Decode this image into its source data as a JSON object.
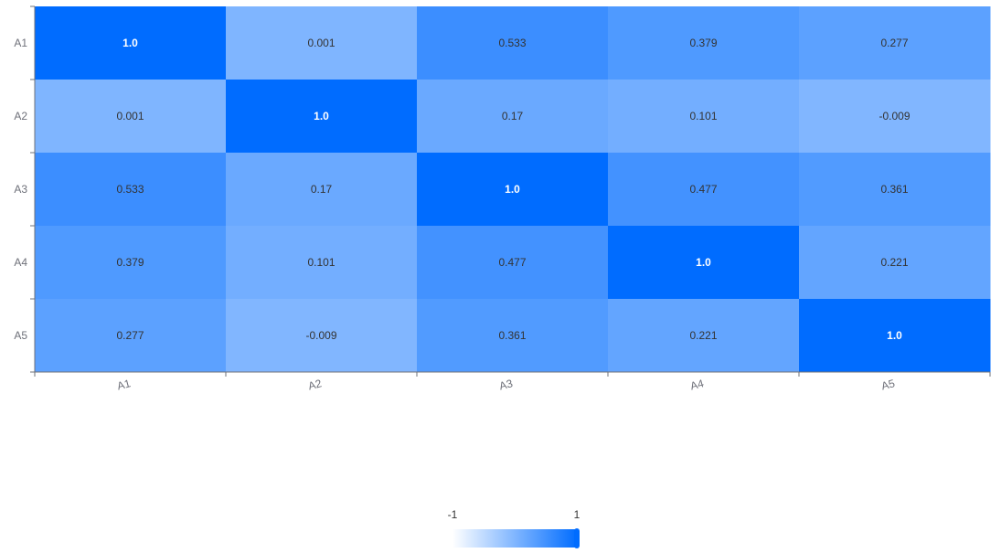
{
  "chart_data": {
    "type": "heatmap",
    "title": "",
    "xlabel": "",
    "ylabel": "",
    "x_categories": [
      "A1",
      "A2",
      "A3",
      "A4",
      "A5"
    ],
    "y_categories": [
      "A1",
      "A2",
      "A3",
      "A4",
      "A5"
    ],
    "matrix": [
      [
        "1.0",
        "0.001",
        "0.533",
        "0.379",
        "0.277"
      ],
      [
        "0.001",
        "1.0",
        "0.17",
        "0.101",
        "-0.009"
      ],
      [
        "0.533",
        "0.17",
        "1.0",
        "0.477",
        "0.361"
      ],
      [
        "0.379",
        "0.101",
        "0.477",
        "1.0",
        "0.221"
      ],
      [
        "0.277",
        "-0.009",
        "0.361",
        "0.221",
        "1.0"
      ]
    ],
    "value_range": [
      -1,
      1
    ],
    "color_scale": [
      "#ffffff",
      "#006cff"
    ],
    "x_tick_rotation_deg": -15,
    "legend": {
      "type": "continuous",
      "placement": "bottom-center",
      "min_label": "-1",
      "max_label": "1",
      "handle_value": 1
    },
    "grid": false
  }
}
